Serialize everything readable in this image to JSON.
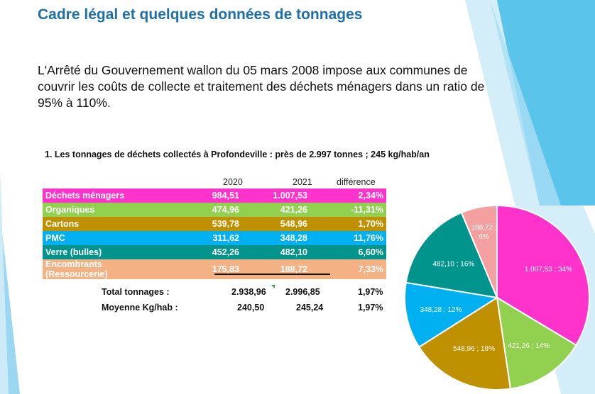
{
  "title": "Cadre légal et quelques données de tonnages",
  "intro": "L'Arrêté du Gouvernement wallon du 05 mars 2008 impose aux communes de couvrir les coûts de collecte et traitement des déchets ménagers dans un ratio de 95% à 110%.",
  "section_heading": "1.  Les tonnages de déchets collectés à Profondeville : près de 2.997 tonnes ; 245 kg/hab/an",
  "table": {
    "headers": [
      "2020",
      "2021",
      "différence"
    ],
    "rows": [
      {
        "label": "Déchets ménagers",
        "v2020": "984,51",
        "v2021": "1.007,53",
        "diff": "2,34%",
        "color": "#ff33cc"
      },
      {
        "label": "Organiques",
        "v2020": "474,96",
        "v2021": "421,26",
        "diff": "-11,31%",
        "color": "#92d050"
      },
      {
        "label": "Cartons",
        "v2020": "539,78",
        "v2021": "548,96",
        "diff": "1,70%",
        "color": "#bf9000"
      },
      {
        "label": "PMC",
        "v2020": "311,62",
        "v2021": "348,28",
        "diff": "11,76%",
        "color": "#00b0f0"
      },
      {
        "label": "Verre (bulles)",
        "v2020": "452,26",
        "v2021": "482,10",
        "diff": "6,60%",
        "color": "#00948c"
      },
      {
        "label": "Encombrants (Ressourcerie)",
        "v2020": "175,83",
        "v2021": "188,72",
        "diff": "7,33%",
        "color": "#f4b183"
      }
    ],
    "totals": [
      {
        "label": "Total tonnages :",
        "v2020": "2.938,96",
        "v2021": "2.996,85",
        "diff": "1,97%"
      },
      {
        "label": "Moyenne Kg/hab :",
        "v2020": "240,50",
        "v2021": "245,24",
        "diff": "1,97%"
      }
    ]
  },
  "chart_data": {
    "type": "pie",
    "slices": [
      {
        "value": 1007.53,
        "label": "1.007,53 ; 34%",
        "color": "#ff33cc"
      },
      {
        "value": 421.26,
        "label": "421,26 ; 14%",
        "color": "#92d050"
      },
      {
        "value": 548.96,
        "label": "548,96 ; 18%",
        "color": "#bf9000"
      },
      {
        "value": 348.28,
        "label": "348,28 ; 12%",
        "color": "#00b0f0"
      },
      {
        "value": 482.1,
        "label": "482,10 ; 16%",
        "color": "#00948c"
      },
      {
        "value": 188.72,
        "label": "188,72 ; 6%",
        "color": "#f4a0a0"
      }
    ]
  }
}
